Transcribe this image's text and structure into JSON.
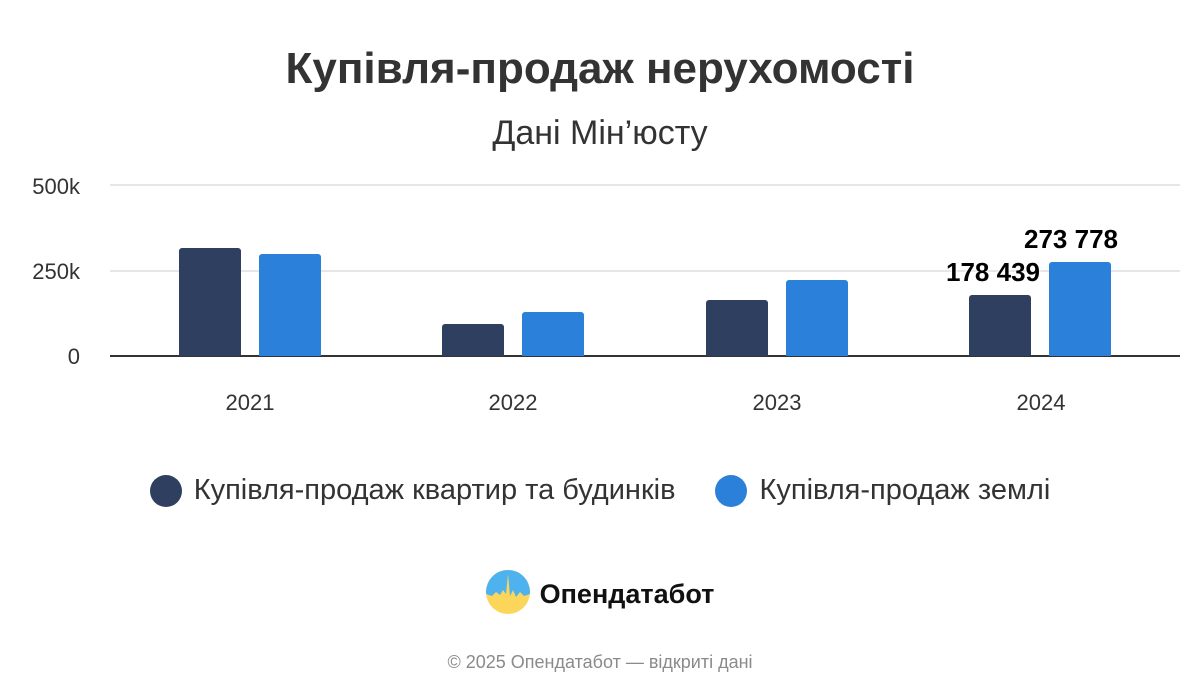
{
  "header": {
    "title": "Купівля-продаж нерухомості",
    "subtitle": "Дані Мін’юсту"
  },
  "legend": [
    {
      "label": "Купівля-продаж квартир та будинків",
      "color": "#2e3f5f"
    },
    {
      "label": "Купівля-продаж землі",
      "color": "#2b80d9"
    }
  ],
  "branding": {
    "name": "Опендатабот"
  },
  "footer": {
    "text": "© 2025 Опендатабот — відкриті дані"
  },
  "axis": {
    "y_ticks": [
      "500k",
      "250k",
      "0"
    ],
    "x_ticks": [
      "2021",
      "2022",
      "2023",
      "2024"
    ]
  },
  "data_labels": {
    "2024_housing": "178 439",
    "2024_land": "273 778"
  },
  "chart_data": {
    "type": "bar",
    "title": "Купівля-продаж нерухомості",
    "subtitle": "Дані Мін’юсту",
    "categories": [
      "2021",
      "2022",
      "2023",
      "2024"
    ],
    "series": [
      {
        "name": "Купівля-продаж квартир та будинків",
        "color": "#2e3f5f",
        "values": [
          316000,
          94000,
          164000,
          178439
        ]
      },
      {
        "name": "Купівля-продаж землі",
        "color": "#2b80d9",
        "values": [
          298000,
          129000,
          222000,
          273778
        ]
      }
    ],
    "xlabel": "",
    "ylabel": "",
    "ylim": [
      0,
      500000
    ],
    "y_ticks": [
      0,
      250000,
      500000
    ],
    "y_tick_labels": [
      "0",
      "250k",
      "500k"
    ],
    "grid": true,
    "legend_position": "bottom",
    "annotations": [
      {
        "category": "2024",
        "series": "Купівля-продаж квартир та будинків",
        "text": "178 439"
      },
      {
        "category": "2024",
        "series": "Купівля-продаж землі",
        "text": "273 778"
      }
    ]
  }
}
